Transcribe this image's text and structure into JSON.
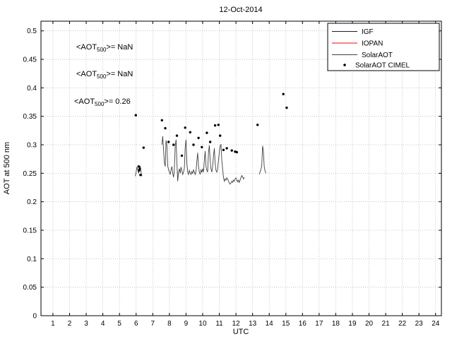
{
  "chart_data": {
    "type": "line",
    "title": "12-Oct-2014",
    "xlabel": "UTC",
    "ylabel": "AOT at 500 nm",
    "xlim": [
      0.28,
      24.35
    ],
    "ylim": [
      0,
      0.517
    ],
    "xticks": [
      1,
      2,
      3,
      4,
      5,
      6,
      7,
      8,
      9,
      10,
      11,
      12,
      13,
      14,
      15,
      16,
      17,
      18,
      19,
      20,
      21,
      22,
      23,
      24
    ],
    "yticks": [
      0,
      0.05,
      0.1,
      0.15,
      0.2,
      0.25,
      0.3,
      0.35,
      0.4,
      0.45,
      0.5
    ],
    "ytick_labels": [
      "0",
      "0.05",
      "0.1",
      "0.15",
      "0.2",
      "0.25",
      "0.3",
      "0.35",
      "0.4",
      "0.45",
      "0.5"
    ],
    "grid": true,
    "legend": {
      "position": "top-right"
    },
    "annotations": [
      {
        "pre": "<AOT",
        "sub": "500",
        "post": ">=  NaN",
        "color": "#0000ff"
      },
      {
        "pre": "<AOT",
        "sub": "500",
        "post": ">=  NaN",
        "color": "#ff0000"
      },
      {
        "pre": "<AOT",
        "sub": "500",
        "post": ">= 0.26",
        "color": "#000000"
      }
    ],
    "series": [
      {
        "name": "IGF",
        "type": "line",
        "color": "#0000ff",
        "mean_aot_500": "NaN",
        "segments": []
      },
      {
        "name": "IOPAN",
        "type": "line",
        "color": "#ff0000",
        "mean_aot_500": "NaN",
        "segments": []
      },
      {
        "name": "SolarAOT",
        "type": "line",
        "color": "#404040",
        "mean_aot_500": "0.26",
        "segments": [
          [
            [
              5.95,
              0.245
            ],
            [
              6.0,
              0.252
            ],
            [
              6.05,
              0.261
            ],
            [
              6.1,
              0.256
            ],
            [
              6.15,
              0.25
            ],
            [
              6.2,
              0.256
            ],
            [
              6.25,
              0.263
            ],
            [
              6.3,
              0.251
            ],
            [
              6.35,
              0.245
            ]
          ],
          [
            [
              7.55,
              0.3
            ],
            [
              7.6,
              0.315
            ],
            [
              7.65,
              0.291
            ],
            [
              7.7,
              0.268
            ],
            [
              7.75,
              0.262
            ],
            [
              7.8,
              0.308
            ],
            [
              7.85,
              0.299
            ],
            [
              7.9,
              0.263
            ],
            [
              7.95,
              0.256
            ],
            [
              8.0,
              0.252
            ],
            [
              8.05,
              0.248
            ],
            [
              8.1,
              0.256
            ],
            [
              8.15,
              0.262
            ],
            [
              8.2,
              0.25
            ],
            [
              8.25,
              0.243
            ],
            [
              8.3,
              0.256
            ],
            [
              8.35,
              0.298
            ],
            [
              8.4,
              0.309
            ],
            [
              8.45,
              0.268
            ],
            [
              8.5,
              0.236
            ],
            [
              8.55,
              0.252
            ],
            [
              8.6,
              0.258
            ],
            [
              8.65,
              0.25
            ],
            [
              8.7,
              0.261
            ],
            [
              8.75,
              0.255
            ],
            [
              8.8,
              0.248
            ],
            [
              8.85,
              0.252
            ],
            [
              8.9,
              0.26
            ],
            [
              8.95,
              0.295
            ],
            [
              9.0,
              0.309
            ],
            [
              9.05,
              0.268
            ],
            [
              9.1,
              0.252
            ],
            [
              9.15,
              0.248
            ],
            [
              9.2,
              0.255
            ],
            [
              9.25,
              0.251
            ],
            [
              9.3,
              0.248
            ],
            [
              9.35,
              0.253
            ],
            [
              9.4,
              0.25
            ],
            [
              9.45,
              0.256
            ],
            [
              9.5,
              0.252
            ],
            [
              9.55,
              0.248
            ],
            [
              9.6,
              0.253
            ],
            [
              9.65,
              0.271
            ],
            [
              9.7,
              0.286
            ],
            [
              9.75,
              0.262
            ],
            [
              9.8,
              0.252
            ],
            [
              9.85,
              0.248
            ],
            [
              9.9,
              0.256
            ],
            [
              9.95,
              0.252
            ],
            [
              10.0,
              0.258
            ],
            [
              10.05,
              0.252
            ],
            [
              10.1,
              0.271
            ],
            [
              10.15,
              0.289
            ],
            [
              10.2,
              0.262
            ],
            [
              10.25,
              0.255
            ],
            [
              10.3,
              0.252
            ],
            [
              10.35,
              0.286
            ],
            [
              10.4,
              0.299
            ],
            [
              10.45,
              0.272
            ],
            [
              10.5,
              0.258
            ],
            [
              10.55,
              0.252
            ],
            [
              10.6,
              0.262
            ],
            [
              10.65,
              0.281
            ],
            [
              10.7,
              0.294
            ],
            [
              10.75,
              0.268
            ],
            [
              10.8,
              0.255
            ],
            [
              10.85,
              0.252
            ],
            [
              10.9,
              0.258
            ],
            [
              10.95,
              0.272
            ],
            [
              11.0,
              0.286
            ],
            [
              11.05,
              0.297
            ],
            [
              11.1,
              0.301
            ],
            [
              11.15,
              0.272
            ],
            [
              11.2,
              0.258
            ],
            [
              11.25,
              0.243
            ],
            [
              11.3,
              0.236
            ],
            [
              11.35,
              0.24
            ],
            [
              11.4,
              0.238
            ],
            [
              11.45,
              0.242
            ],
            [
              11.5,
              0.24
            ],
            [
              11.55,
              0.236
            ],
            [
              11.6,
              0.233
            ],
            [
              11.65,
              0.231
            ],
            [
              11.7,
              0.233
            ],
            [
              11.75,
              0.236
            ],
            [
              11.8,
              0.234
            ],
            [
              11.85,
              0.238
            ],
            [
              11.9,
              0.236
            ],
            [
              11.95,
              0.24
            ],
            [
              12.0,
              0.242
            ],
            [
              12.05,
              0.238
            ],
            [
              12.1,
              0.235
            ],
            [
              12.15,
              0.238
            ],
            [
              12.2,
              0.234
            ],
            [
              12.25,
              0.238
            ],
            [
              12.3,
              0.242
            ],
            [
              12.35,
              0.246
            ],
            [
              12.4,
              0.244
            ],
            [
              12.45,
              0.24
            ],
            [
              12.5,
              0.243
            ]
          ],
          [
            [
              13.4,
              0.248
            ],
            [
              13.45,
              0.252
            ],
            [
              13.5,
              0.257
            ],
            [
              13.55,
              0.263
            ],
            [
              13.6,
              0.298
            ],
            [
              13.65,
              0.29
            ],
            [
              13.7,
              0.262
            ],
            [
              13.75,
              0.254
            ],
            [
              13.8,
              0.25
            ]
          ]
        ]
      },
      {
        "name": "SolarAOT CIMEL",
        "type": "scatter",
        "color": "#000000",
        "points": [
          [
            5.98,
            0.352
          ],
          [
            6.15,
            0.262
          ],
          [
            6.18,
            0.255
          ],
          [
            6.22,
            0.258
          ],
          [
            6.26,
            0.247
          ],
          [
            6.45,
            0.295
          ],
          [
            7.55,
            0.343
          ],
          [
            7.75,
            0.329
          ],
          [
            7.95,
            0.305
          ],
          [
            8.25,
            0.3
          ],
          [
            8.45,
            0.316
          ],
          [
            8.75,
            0.281
          ],
          [
            8.95,
            0.33
          ],
          [
            9.25,
            0.322
          ],
          [
            9.45,
            0.3
          ],
          [
            9.75,
            0.312
          ],
          [
            9.95,
            0.296
          ],
          [
            10.25,
            0.321
          ],
          [
            10.45,
            0.305
          ],
          [
            10.75,
            0.334
          ],
          [
            10.95,
            0.335
          ],
          [
            11.05,
            0.316
          ],
          [
            11.25,
            0.291
          ],
          [
            11.45,
            0.294
          ],
          [
            11.75,
            0.29
          ],
          [
            11.95,
            0.288
          ],
          [
            12.05,
            0.287
          ],
          [
            13.3,
            0.335
          ],
          [
            14.85,
            0.389
          ],
          [
            15.05,
            0.365
          ]
        ]
      }
    ]
  }
}
